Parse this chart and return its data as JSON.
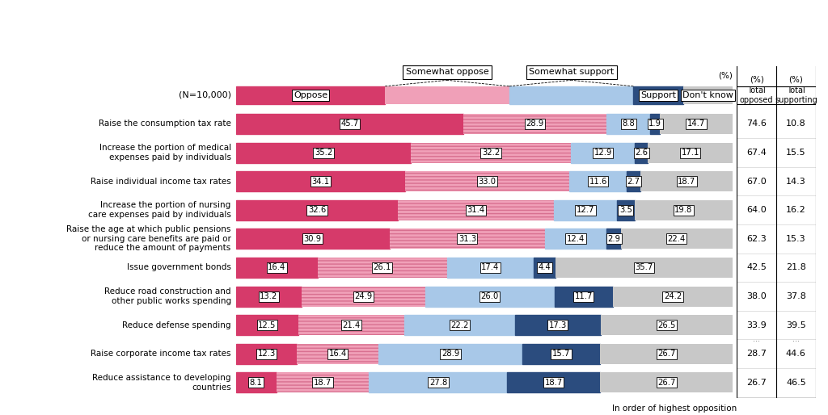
{
  "categories": [
    "Raise the consumption tax rate",
    "Increase the portion of medical\nexpenses paid by individuals",
    "Raise individual income tax rates",
    "Increase the portion of nursing\ncare expenses paid by individuals",
    "Raise the age at which public pensions\nor nursing care benefits are paid or\nreduce the amount of payments",
    "Issue government bonds",
    "Reduce road construction and\nother public works spending",
    "Reduce defense spending",
    "Raise corporate income tax rates",
    "Reduce assistance to developing\ncountries"
  ],
  "oppose": [
    45.7,
    35.2,
    34.1,
    32.6,
    30.9,
    16.4,
    13.2,
    12.5,
    12.3,
    8.1
  ],
  "somewhat_oppose": [
    28.9,
    32.2,
    33.0,
    31.4,
    31.3,
    26.1,
    24.9,
    21.4,
    16.4,
    18.7
  ],
  "somewhat_support": [
    8.8,
    12.9,
    11.6,
    12.7,
    12.4,
    17.4,
    26.0,
    22.2,
    28.9,
    27.8
  ],
  "support": [
    1.9,
    2.6,
    2.7,
    3.5,
    2.9,
    4.4,
    11.7,
    17.3,
    15.7,
    18.7
  ],
  "dont_know": [
    14.7,
    17.1,
    18.7,
    19.8,
    22.4,
    35.7,
    24.2,
    26.5,
    26.7,
    26.7
  ],
  "total_opposed": [
    74.6,
    67.4,
    67.0,
    64.0,
    62.3,
    42.5,
    38.0,
    33.9,
    28.7,
    26.7
  ],
  "total_supporting": [
    10.8,
    15.5,
    14.3,
    16.2,
    15.3,
    21.8,
    37.8,
    39.5,
    44.6,
    46.5
  ],
  "color_oppose": "#D63A6A",
  "color_somewhat_oppose": "#F0A0B8",
  "color_somewhat_support": "#A8C8E8",
  "color_support": "#2B4C7E",
  "color_dont_know": "#C8C8C8",
  "legend_row_oppose": 30,
  "legend_row_s_oppose": 25,
  "legend_row_s_support": 25,
  "legend_row_support": 10,
  "legend_row_dk": 10,
  "header_note": "(N=10,000)",
  "footer_note": "In order of highest opposition",
  "pct_label": "(%)",
  "col1_header": "Total\nopposed",
  "col2_header": "Total\nsupporting",
  "ellipsis_row": 7
}
